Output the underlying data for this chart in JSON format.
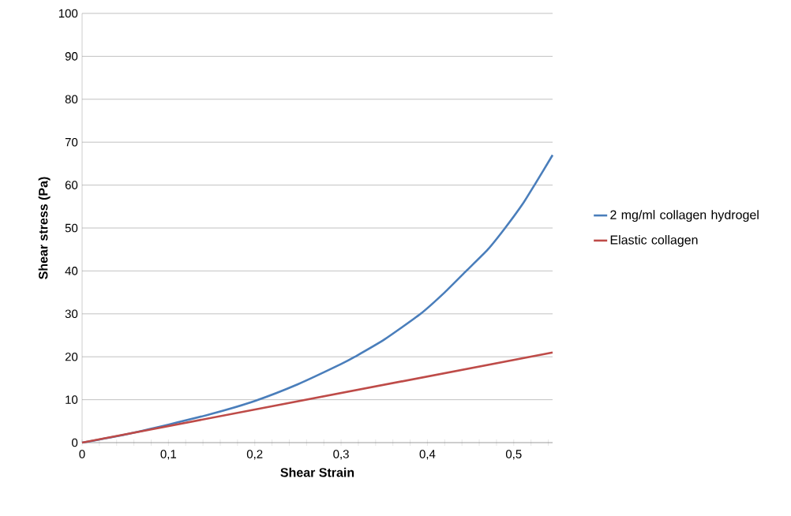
{
  "chart_data": {
    "type": "line",
    "xlabel": "Shear Strain",
    "ylabel": "Shear stress     (Pa)",
    "xlim": [
      0,
      0.545
    ],
    "ylim": [
      0,
      100
    ],
    "xticks": [
      {
        "value": 0,
        "label": "0"
      },
      {
        "value": 0.02,
        "label": null
      },
      {
        "value": 0.04,
        "label": null
      },
      {
        "value": 0.06,
        "label": null
      },
      {
        "value": 0.08,
        "label": null
      },
      {
        "value": 0.1,
        "label": "0,1"
      },
      {
        "value": 0.12,
        "label": null
      },
      {
        "value": 0.14,
        "label": null
      },
      {
        "value": 0.16,
        "label": null
      },
      {
        "value": 0.18,
        "label": null
      },
      {
        "value": 0.2,
        "label": "0,2"
      },
      {
        "value": 0.22,
        "label": null
      },
      {
        "value": 0.24,
        "label": null
      },
      {
        "value": 0.26,
        "label": null
      },
      {
        "value": 0.28,
        "label": null
      },
      {
        "value": 0.3,
        "label": "0,3"
      },
      {
        "value": 0.32,
        "label": null
      },
      {
        "value": 0.34,
        "label": null
      },
      {
        "value": 0.36,
        "label": null
      },
      {
        "value": 0.38,
        "label": null
      },
      {
        "value": 0.4,
        "label": "0,4"
      },
      {
        "value": 0.42,
        "label": null
      },
      {
        "value": 0.44,
        "label": null
      },
      {
        "value": 0.46,
        "label": null
      },
      {
        "value": 0.48,
        "label": null
      },
      {
        "value": 0.5,
        "label": "0,5"
      },
      {
        "value": 0.52,
        "label": null
      },
      {
        "value": 0.54,
        "label": null
      }
    ],
    "yticks": [
      0,
      10,
      20,
      30,
      40,
      50,
      60,
      70,
      80,
      90,
      100
    ],
    "grid": "y",
    "legend": "right",
    "marker": "none",
    "line_style": "solid",
    "series": [
      {
        "name": "2 mg/ml collagen hydrogel",
        "color": "#4a7ebb",
        "x": [
          0,
          0.05,
          0.1,
          0.15,
          0.2,
          0.25,
          0.3,
          0.316,
          0.35,
          0.392,
          0.42,
          0.445,
          0.47,
          0.49,
          0.51,
          0.524,
          0.545
        ],
        "values": [
          0,
          1.9,
          4.2,
          6.7,
          9.7,
          13.6,
          18.3,
          20,
          24,
          30,
          35,
          40,
          45,
          50,
          55.5,
          60,
          67
        ]
      },
      {
        "name": "Elastic collagen",
        "color": "#be4b48",
        "x": [
          0,
          0.545
        ],
        "values": [
          0,
          21
        ]
      }
    ]
  }
}
